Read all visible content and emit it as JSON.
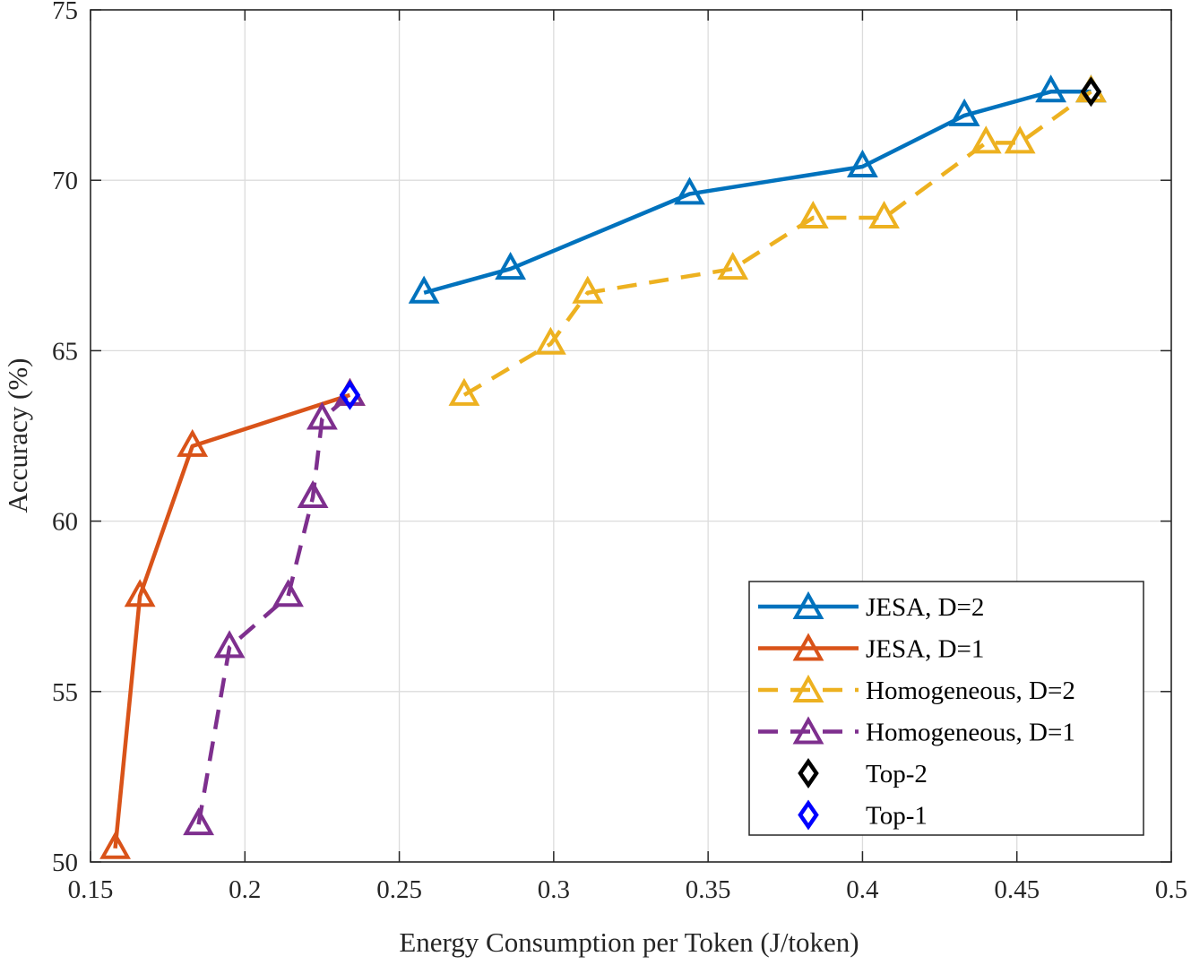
{
  "chart_data": {
    "type": "line",
    "title": "",
    "xlabel": "Energy Consumption per Token (J/token)",
    "ylabel": "Accuracy (%)",
    "xlim": [
      0.15,
      0.5
    ],
    "ylim": [
      50,
      75
    ],
    "xticks": [
      0.15,
      0.2,
      0.25,
      0.3,
      0.35,
      0.4,
      0.45,
      0.5
    ],
    "xtick_labels": [
      "0.15",
      "0.2",
      "0.25",
      "0.3",
      "0.35",
      "0.4",
      "0.45",
      "0.5"
    ],
    "yticks": [
      50,
      55,
      60,
      65,
      70,
      75
    ],
    "ytick_labels": [
      "50",
      "55",
      "60",
      "65",
      "70",
      "75"
    ],
    "grid": true,
    "legend_position": "bottom-right",
    "series": [
      {
        "name": "JESA, D=2",
        "color": "#0072BD",
        "line": "solid",
        "marker": "triangle",
        "x": [
          0.258,
          0.286,
          0.344,
          0.4,
          0.433,
          0.461,
          0.474
        ],
        "y": [
          66.7,
          67.4,
          69.6,
          70.4,
          71.9,
          72.6,
          72.6
        ]
      },
      {
        "name": "JESA, D=1",
        "color": "#D95319",
        "line": "solid",
        "marker": "triangle",
        "x": [
          0.158,
          0.166,
          0.183,
          0.234
        ],
        "y": [
          50.4,
          57.8,
          62.2,
          63.7
        ]
      },
      {
        "name": "Homogeneous, D=2",
        "color": "#EDB120",
        "line": "dashed",
        "marker": "triangle",
        "x": [
          0.271,
          0.299,
          0.311,
          0.358,
          0.384,
          0.407,
          0.44,
          0.451,
          0.474
        ],
        "y": [
          63.7,
          65.2,
          66.7,
          67.4,
          68.9,
          68.9,
          71.1,
          71.1,
          72.6
        ]
      },
      {
        "name": "Homogeneous, D=1",
        "color": "#7E2F8E",
        "line": "dashed",
        "marker": "triangle",
        "x": [
          0.185,
          0.195,
          0.214,
          0.222,
          0.225,
          0.234
        ],
        "y": [
          51.1,
          56.3,
          57.8,
          60.7,
          63.0,
          63.7
        ]
      },
      {
        "name": "Top-2",
        "color": "#000000",
        "line": "none",
        "marker": "diamond",
        "x": [
          0.474
        ],
        "y": [
          72.6
        ]
      },
      {
        "name": "Top-1",
        "color": "#0000FF",
        "line": "none",
        "marker": "diamond",
        "x": [
          0.234
        ],
        "y": [
          63.7
        ]
      }
    ]
  }
}
